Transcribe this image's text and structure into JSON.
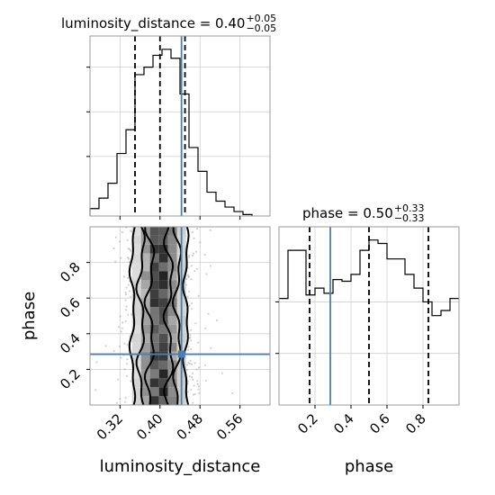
{
  "chart_data": {
    "type": "corner",
    "truth_color": "#4a7fae",
    "parameters": [
      {
        "name": "luminosity_distance",
        "xlabel": "luminosity_distance",
        "title": {
          "text": "luminosity_distance = 0.40",
          "plus": "+0.05",
          "minus": "−0.05"
        },
        "range": [
          0.26,
          0.62
        ],
        "ticks": [
          0.32,
          0.4,
          0.48,
          0.56
        ],
        "tick_labels": [
          "0.32",
          "0.40",
          "0.48",
          "0.56"
        ],
        "quantiles": [
          0.35,
          0.4,
          0.45
        ],
        "truth": 0.443,
        "hist_edges": [
          0.26,
          0.278,
          0.296,
          0.314,
          0.332,
          0.35,
          0.368,
          0.386,
          0.404,
          0.422,
          0.44,
          0.458,
          0.476,
          0.494,
          0.512,
          0.53,
          0.548,
          0.566,
          0.584
        ],
        "hist_counts": [
          5,
          12,
          22,
          42,
          58,
          95,
          100,
          108,
          112,
          106,
          82,
          46,
          30,
          16,
          10,
          6,
          3,
          1
        ]
      },
      {
        "name": "phase",
        "xlabel": "phase",
        "ylabel": "phase",
        "title": {
          "text": "phase = 0.50",
          "plus": "+0.33",
          "minus": "−0.33"
        },
        "range": [
          0.0,
          1.0
        ],
        "ticks": [
          0.2,
          0.4,
          0.6,
          0.8
        ],
        "tick_labels": [
          "0.2",
          "0.4",
          "0.6",
          "0.8"
        ],
        "quantiles": [
          0.17,
          0.5,
          0.83
        ],
        "truth": 0.285,
        "hist_edges": [
          0.0,
          0.05,
          0.1,
          0.15,
          0.2,
          0.25,
          0.3,
          0.35,
          0.4,
          0.45,
          0.5,
          0.55,
          0.6,
          0.65,
          0.7,
          0.75,
          0.8,
          0.85,
          0.9,
          0.95,
          1.0
        ],
        "hist_counts": [
          62,
          90,
          90,
          64,
          68,
          65,
          73,
          72,
          76,
          90,
          96,
          94,
          85,
          85,
          76,
          68,
          60,
          52,
          55,
          62
        ]
      }
    ],
    "scatter_2d": {
      "x": "luminosity_distance",
      "y": "phase",
      "truth_point": [
        0.443,
        0.285
      ],
      "contour_levels": [
        "inner",
        "middle",
        "outer"
      ]
    }
  }
}
